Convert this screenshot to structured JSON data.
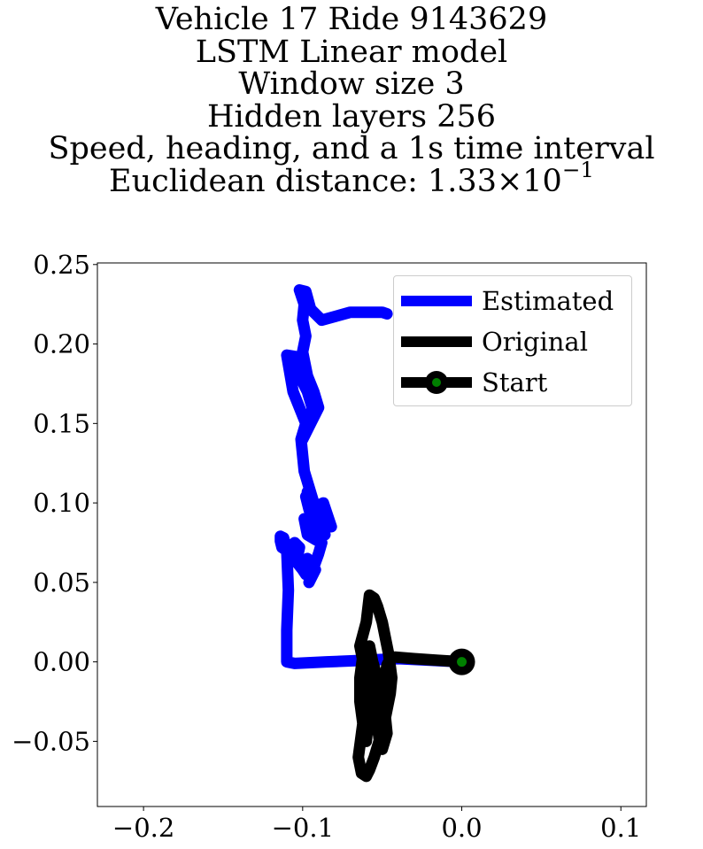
{
  "title_lines": [
    "Vehicle 17 Ride 9143629",
    "LSTM Linear model",
    "Window size 3",
    "Hidden layers 256",
    "Speed, heading, and a 1s time interval"
  ],
  "title_distance": {
    "prefix": "Euclidean distance: 1.33×10",
    "exponent": "−1"
  },
  "chart_data": {
    "type": "line",
    "xlim": [
      -0.229,
      0.116
    ],
    "ylim": [
      -0.091,
      0.251
    ],
    "xticks": [
      -0.2,
      -0.1,
      0.0,
      0.1
    ],
    "xtick_labels": [
      "−0.2",
      "−0.1",
      "0.0",
      "0.1"
    ],
    "yticks": [
      -0.05,
      0.0,
      0.05,
      0.1,
      0.15,
      0.2,
      0.25
    ],
    "ytick_labels": [
      "−0.05",
      "0.00",
      "0.05",
      "0.10",
      "0.15",
      "0.20",
      "0.25"
    ],
    "grid": false,
    "legend_position": "upper right",
    "series": [
      {
        "name": "Estimated",
        "color": "#0000ff",
        "x": [
          0.0,
          -0.02,
          -0.04,
          -0.06,
          -0.085,
          -0.105,
          -0.11,
          -0.11,
          -0.109,
          -0.11,
          -0.112,
          -0.114,
          -0.114,
          -0.113,
          -0.11,
          -0.105,
          -0.102,
          -0.104,
          -0.1,
          -0.098,
          -0.1,
          -0.097,
          -0.092,
          -0.096,
          -0.094,
          -0.09,
          -0.088,
          -0.092,
          -0.097,
          -0.099,
          -0.094,
          -0.09,
          -0.086,
          -0.089,
          -0.092,
          -0.095,
          -0.097,
          -0.095,
          -0.092,
          -0.094,
          -0.096,
          -0.098,
          -0.096,
          -0.095,
          -0.093,
          -0.087,
          -0.082,
          -0.087,
          -0.093,
          -0.096,
          -0.099,
          -0.101,
          -0.098,
          -0.106,
          -0.11,
          -0.104,
          -0.1,
          -0.097,
          -0.094,
          -0.095,
          -0.1,
          -0.095,
          -0.09,
          -0.093,
          -0.097,
          -0.1,
          -0.098,
          -0.1,
          -0.099,
          -0.102,
          -0.098,
          -0.095,
          -0.088,
          -0.07,
          -0.05,
          -0.047
        ],
        "y": [
          0.0,
          0.001,
          0.002,
          0.001,
          0.0,
          -0.001,
          0.0,
          0.02,
          0.045,
          0.07,
          0.078,
          0.079,
          0.076,
          0.072,
          0.07,
          0.075,
          0.072,
          0.063,
          0.058,
          0.055,
          0.06,
          0.065,
          0.058,
          0.05,
          0.057,
          0.068,
          0.075,
          0.077,
          0.08,
          0.09,
          0.088,
          0.083,
          0.08,
          0.09,
          0.097,
          0.102,
          0.107,
          0.106,
          0.097,
          0.09,
          0.096,
          0.104,
          0.107,
          0.1,
          0.097,
          0.1,
          0.085,
          0.09,
          0.1,
          0.11,
          0.12,
          0.14,
          0.15,
          0.17,
          0.193,
          0.192,
          0.176,
          0.17,
          0.16,
          0.15,
          0.14,
          0.15,
          0.16,
          0.17,
          0.18,
          0.195,
          0.205,
          0.215,
          0.225,
          0.234,
          0.233,
          0.222,
          0.215,
          0.22,
          0.22,
          0.219
        ]
      },
      {
        "name": "Original",
        "color": "#000000",
        "x": [
          0.0,
          -0.015,
          -0.03,
          -0.042,
          -0.045,
          -0.047,
          -0.048,
          -0.05,
          -0.052,
          -0.053,
          -0.051,
          -0.05,
          -0.047,
          -0.048,
          -0.045,
          -0.044,
          -0.046,
          -0.048,
          -0.05,
          -0.053,
          -0.055,
          -0.058,
          -0.06,
          -0.064,
          -0.062,
          -0.06,
          -0.058,
          -0.061,
          -0.063,
          -0.065,
          -0.063,
          -0.06,
          -0.058,
          -0.055,
          -0.052,
          -0.05,
          -0.048,
          -0.05,
          -0.053,
          -0.056,
          -0.058,
          -0.062,
          -0.064,
          -0.064,
          -0.062,
          -0.06,
          -0.06,
          -0.059,
          -0.058,
          -0.055,
          -0.051,
          -0.048,
          -0.05,
          -0.053,
          -0.055,
          -0.057,
          -0.059,
          -0.061,
          -0.061,
          -0.058,
          -0.057,
          -0.056,
          -0.055,
          -0.054,
          -0.053,
          -0.052,
          -0.051,
          -0.054
        ],
        "y": [
          0.0,
          0.001,
          0.002,
          0.003,
          0.002,
          -0.002,
          -0.008,
          -0.015,
          -0.025,
          -0.04,
          -0.05,
          -0.055,
          -0.045,
          -0.035,
          -0.02,
          -0.01,
          0.005,
          0.015,
          0.025,
          0.035,
          0.04,
          0.042,
          0.025,
          0.01,
          0.0,
          -0.012,
          -0.02,
          -0.03,
          -0.045,
          -0.06,
          -0.07,
          -0.072,
          -0.068,
          -0.06,
          -0.05,
          -0.04,
          -0.03,
          -0.02,
          -0.01,
          0.0,
          0.01,
          0.005,
          -0.01,
          -0.025,
          -0.04,
          -0.047,
          -0.05,
          -0.04,
          -0.03,
          -0.02,
          -0.01,
          -0.01,
          -0.02,
          -0.03,
          -0.035,
          -0.03,
          -0.02,
          -0.01,
          0.0,
          0.003,
          0.0,
          -0.01,
          -0.02,
          -0.03,
          -0.04,
          -0.048,
          -0.05,
          -0.04
        ]
      }
    ],
    "start": {
      "name": "Start",
      "x": 0.0,
      "y": 0.0,
      "marker_edge_color": "#000000",
      "marker_face_color": "#008000"
    }
  }
}
